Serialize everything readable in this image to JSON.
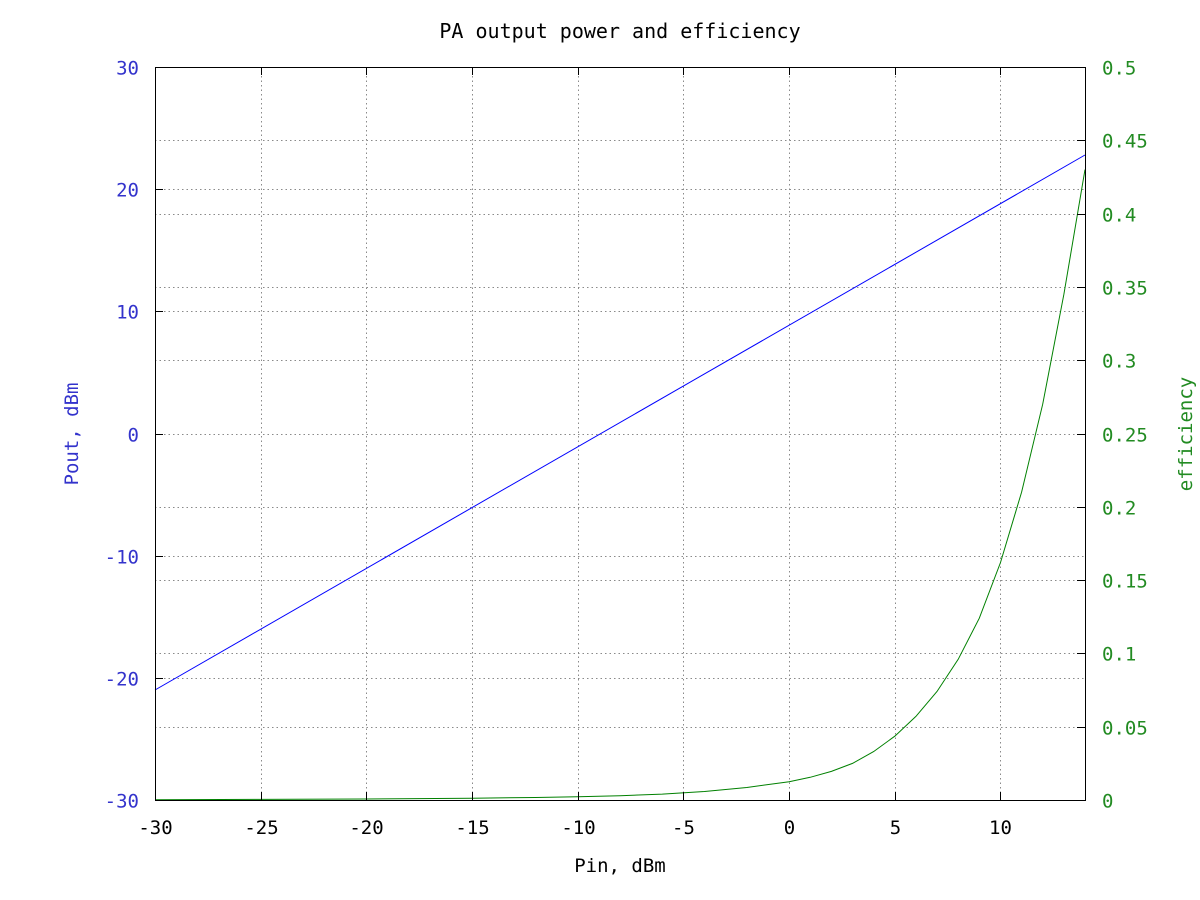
{
  "chart_data": {
    "type": "line",
    "title": "PA output power and efficiency",
    "xlabel": "Pin, dBm",
    "ylabel": "Pout, dBm",
    "y2label": "efficiency",
    "xlim": [
      -30,
      14
    ],
    "ylim": [
      -30,
      30
    ],
    "y2lim": [
      0,
      0.5
    ],
    "grid": true,
    "legend": "none",
    "x_ticks": [
      "-30",
      "-25",
      "-20",
      "-15",
      "-10",
      "-5",
      "0",
      "5",
      "10"
    ],
    "x_tick_values": [
      -30,
      -25,
      -20,
      -15,
      -10,
      -5,
      0,
      5,
      10
    ],
    "y_ticks": [
      "-30",
      "-20",
      "-10",
      "0",
      "10",
      "20",
      "30"
    ],
    "y_tick_values": [
      -30,
      -20,
      -10,
      0,
      10,
      20,
      30
    ],
    "y2_ticks": [
      "0",
      "0.05",
      "0.1",
      "0.15",
      "0.2",
      "0.25",
      "0.3",
      "0.35",
      "0.4",
      "0.45",
      "0.5"
    ],
    "y2_tick_values": [
      0,
      0.05,
      0.1,
      0.15,
      0.2,
      0.25,
      0.3,
      0.35,
      0.4,
      0.45,
      0.5
    ],
    "colors": {
      "pout": "#0000ff",
      "efficiency": "#008000",
      "y_axis": "#3333cc",
      "y2_axis": "#228b22"
    },
    "series": [
      {
        "axis": "y",
        "x": [
          -30,
          14
        ],
        "y": [
          -21,
          22.8
        ]
      },
      {
        "axis": "y2",
        "x": [
          -30,
          -25,
          -20,
          -15,
          -12,
          -10,
          -8,
          -6,
          -4,
          -2,
          0,
          1,
          2,
          3,
          4,
          5,
          6,
          7,
          8,
          9,
          10,
          11,
          12,
          13,
          14
        ],
        "y": [
          0.0002,
          0.0004,
          0.0007,
          0.0012,
          0.0017,
          0.0022,
          0.0029,
          0.004,
          0.0058,
          0.0085,
          0.0125,
          0.0155,
          0.0195,
          0.025,
          0.033,
          0.0435,
          0.057,
          0.074,
          0.096,
          0.124,
          0.162,
          0.21,
          0.27,
          0.345,
          0.43
        ]
      }
    ]
  }
}
